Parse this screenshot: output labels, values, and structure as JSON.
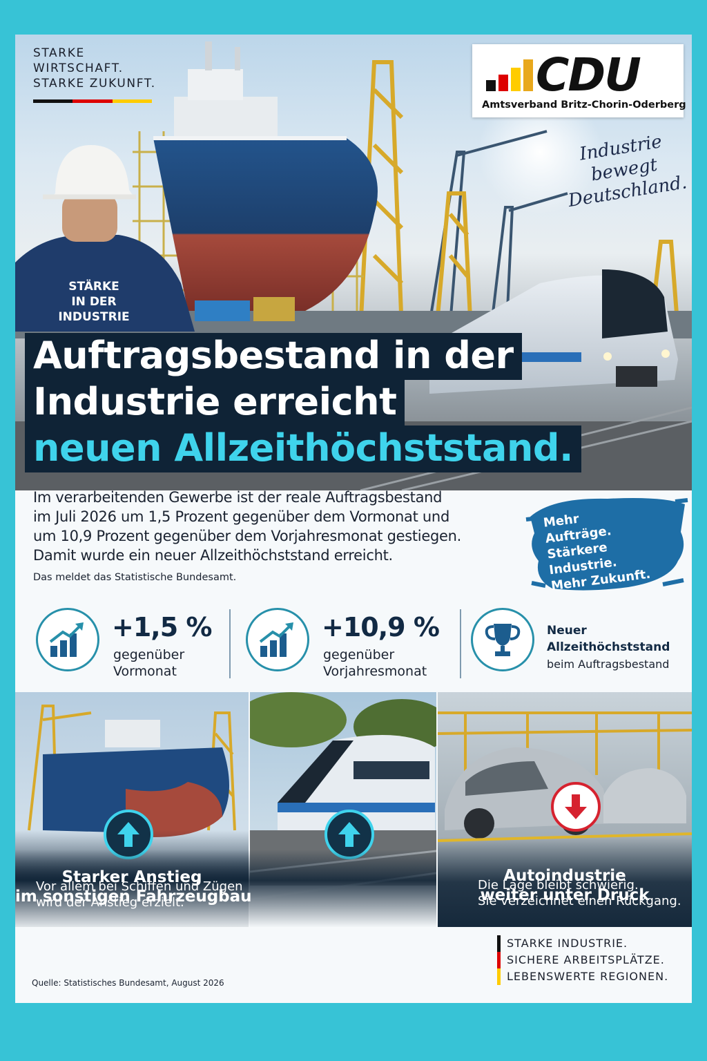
{
  "colors": {
    "frame": "#37c3d6",
    "navy": "#0f2336",
    "accent_cyan": "#3fd3ec",
    "flag_black": "#111111",
    "flag_red": "#dd0000",
    "flag_gold": "#ffcc00",
    "brush_blue": "#1e6ea6",
    "down_red": "#d6222f"
  },
  "top_tagline": [
    "STARKE",
    "WIRTSCHAFT.",
    "STARKE ZUKUNFT."
  ],
  "logo": {
    "text": "CDU",
    "subtitle": "Amtsverband Britz-Chorin-Oderberg"
  },
  "script_tagline": [
    "Industrie",
    "bewegt",
    "Deutschland."
  ],
  "jacket_text": [
    "STÄRKE",
    "IN DER INDUSTRIE"
  ],
  "headline": {
    "line1": "Auftragsbestand in der",
    "line2": "Industrie erreicht",
    "line3": "neuen Allzeithöchststand."
  },
  "intro": {
    "lines": [
      "Im verarbeitenden Gewerbe ist der reale Auftragsbestand",
      "im Juli 2026 um 1,5 Prozent gegenüber dem Vormonat und",
      "um 10,9 Prozent gegenüber dem Vorjahresmonat gestiegen.",
      "Damit wurde ein neuer Allzeithöchststand erreicht."
    ],
    "note": "Das meldet das Statistische Bundesamt."
  },
  "brush_slogan": [
    "Mehr",
    "Aufträge.",
    "Stärkere",
    "Industrie.",
    "Mehr Zukunft."
  ],
  "stats": [
    {
      "icon": "bar-chart-arrow-icon",
      "value": "+1,5 %",
      "label1": "gegenüber",
      "label2": "Vormonat"
    },
    {
      "icon": "bar-chart-arrow-icon",
      "value": "+10,9 %",
      "label1": "gegenüber",
      "label2": "Vorjahresmonat"
    },
    {
      "icon": "trophy-icon",
      "bold1": "Neuer",
      "bold2": "Allzeithöchststand",
      "label": "beim Auftragsbestand"
    }
  ],
  "panels": {
    "left": {
      "icon": "arrow-up-icon",
      "title1": "Starker Anstieg",
      "title2": "im sonstigen Fahrzeugbau",
      "text1": "Vor allem bei Schiffen und Zügen",
      "text2": "wird der Anstieg erzielt."
    },
    "middle": {
      "icon": "arrow-up-icon"
    },
    "right": {
      "icon": "arrow-down-icon",
      "title1": "Autoindustrie",
      "title2": "weiter unter Druck",
      "text1": "Die Lage bleibt schwierig.",
      "text2": "Sie verzeichnet einen Rückgang."
    }
  },
  "source": "Quelle: Statistisches Bundesamt, August 2026",
  "footer_lines": [
    "STARKE INDUSTRIE.",
    "SICHERE ARBEITSPLÄTZE.",
    "LEBENSWERTE REGIONEN."
  ]
}
